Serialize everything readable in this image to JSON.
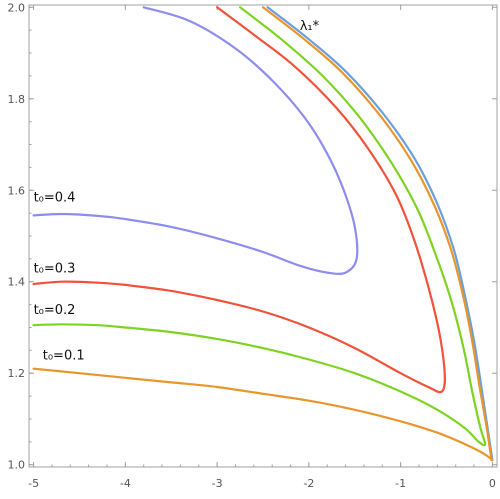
{
  "chart_data": {
    "type": "line",
    "title": "",
    "xlabel": "",
    "ylabel": "",
    "xlim": [
      -5.05,
      0.05
    ],
    "ylim": [
      0.995,
      2.005
    ],
    "grid": false,
    "x_ticks": [
      -5,
      -4,
      -3,
      -2,
      -1,
      0
    ],
    "x_tick_labels": [
      "-5",
      "-4",
      "-3",
      "-2",
      "-1",
      "0"
    ],
    "y_ticks": [
      1.0,
      1.2,
      1.4,
      1.6,
      1.8,
      2.0
    ],
    "y_tick_labels": [
      "1.0",
      "1.2",
      "1.4",
      "1.6",
      "1.8",
      "2.0"
    ],
    "series": [
      {
        "name": "λ₁*",
        "color": "#6b9fdc",
        "points": [
          [
            -2.45,
            2.0
          ],
          [
            -2.0,
            1.93
          ],
          [
            -1.6,
            1.86
          ],
          [
            -1.2,
            1.77
          ],
          [
            -0.85,
            1.67
          ],
          [
            -0.6,
            1.57
          ],
          [
            -0.42,
            1.47
          ],
          [
            -0.3,
            1.37
          ],
          [
            -0.2,
            1.27
          ],
          [
            -0.12,
            1.17
          ],
          [
            -0.06,
            1.09
          ],
          [
            0.0,
            1.01
          ]
        ]
      },
      {
        "name": "",
        "color": "#e8962c",
        "points": [
          [
            -2.5,
            2.0
          ],
          [
            -2.05,
            1.93
          ],
          [
            -1.65,
            1.86
          ],
          [
            -1.25,
            1.77
          ],
          [
            -0.9,
            1.67
          ],
          [
            -0.64,
            1.57
          ],
          [
            -0.45,
            1.47
          ],
          [
            -0.32,
            1.37
          ],
          [
            -0.22,
            1.27
          ],
          [
            -0.14,
            1.17
          ],
          [
            -0.07,
            1.09
          ],
          [
            -0.01,
            1.01
          ]
        ]
      },
      {
        "name": "t₀=0.1",
        "color": "#e8962c",
        "points": [
          [
            -5.0,
            1.21
          ],
          [
            -4.5,
            1.2
          ],
          [
            -4.0,
            1.19
          ],
          [
            -3.5,
            1.18
          ],
          [
            -3.0,
            1.17
          ],
          [
            -2.5,
            1.155
          ],
          [
            -2.0,
            1.14
          ],
          [
            -1.5,
            1.12
          ],
          [
            -1.0,
            1.095
          ],
          [
            -0.6,
            1.07
          ],
          [
            -0.3,
            1.045
          ],
          [
            -0.1,
            1.025
          ],
          [
            0.0,
            1.01
          ]
        ]
      },
      {
        "name": "t₀=0.2",
        "color": "#7ed321",
        "points": [
          [
            -5.0,
            1.305
          ],
          [
            -4.7,
            1.307
          ],
          [
            -4.3,
            1.305
          ],
          [
            -4.0,
            1.3
          ],
          [
            -3.5,
            1.29
          ],
          [
            -3.0,
            1.275
          ],
          [
            -2.5,
            1.255
          ],
          [
            -2.0,
            1.23
          ],
          [
            -1.5,
            1.2
          ],
          [
            -1.0,
            1.16
          ],
          [
            -0.6,
            1.12
          ],
          [
            -0.3,
            1.08
          ],
          [
            -0.15,
            1.05
          ],
          [
            -0.08,
            1.045
          ],
          [
            -0.13,
            1.08
          ],
          [
            -0.22,
            1.16
          ],
          [
            -0.32,
            1.26
          ],
          [
            -0.45,
            1.36
          ],
          [
            -0.62,
            1.46
          ],
          [
            -0.82,
            1.56
          ],
          [
            -1.1,
            1.66
          ],
          [
            -1.45,
            1.76
          ],
          [
            -1.85,
            1.85
          ],
          [
            -2.3,
            1.93
          ],
          [
            -2.75,
            2.0
          ]
        ]
      },
      {
        "name": "t₀=0.3",
        "color": "#f0523a",
        "points": [
          [
            -5.0,
            1.395
          ],
          [
            -4.7,
            1.4
          ],
          [
            -4.3,
            1.398
          ],
          [
            -4.0,
            1.393
          ],
          [
            -3.5,
            1.38
          ],
          [
            -3.0,
            1.36
          ],
          [
            -2.5,
            1.335
          ],
          [
            -2.0,
            1.3
          ],
          [
            -1.5,
            1.255
          ],
          [
            -1.0,
            1.2
          ],
          [
            -0.7,
            1.17
          ],
          [
            -0.55,
            1.16
          ],
          [
            -0.52,
            1.2
          ],
          [
            -0.58,
            1.29
          ],
          [
            -0.7,
            1.39
          ],
          [
            -0.85,
            1.49
          ],
          [
            -1.05,
            1.59
          ],
          [
            -1.35,
            1.69
          ],
          [
            -1.7,
            1.78
          ],
          [
            -2.15,
            1.87
          ],
          [
            -2.6,
            1.94
          ],
          [
            -3.0,
            2.0
          ]
        ]
      },
      {
        "name": "t₀=0.4",
        "color": "#8d8df0",
        "points": [
          [
            -5.0,
            1.545
          ],
          [
            -4.7,
            1.548
          ],
          [
            -4.3,
            1.544
          ],
          [
            -4.0,
            1.537
          ],
          [
            -3.5,
            1.52
          ],
          [
            -3.0,
            1.495
          ],
          [
            -2.5,
            1.465
          ],
          [
            -2.1,
            1.435
          ],
          [
            -1.8,
            1.42
          ],
          [
            -1.6,
            1.42
          ],
          [
            -1.48,
            1.45
          ],
          [
            -1.5,
            1.52
          ],
          [
            -1.62,
            1.6
          ],
          [
            -1.8,
            1.68
          ],
          [
            -2.05,
            1.76
          ],
          [
            -2.4,
            1.84
          ],
          [
            -2.8,
            1.91
          ],
          [
            -3.3,
            1.97
          ],
          [
            -3.8,
            2.0
          ]
        ]
      }
    ],
    "annotations": [
      {
        "text": "t₀=0.4",
        "x": -5.0,
        "y": 1.575
      },
      {
        "text": "t₀=0.3",
        "x": -5.0,
        "y": 1.42
      },
      {
        "text": "t₀=0.2",
        "x": -5.0,
        "y": 1.33
      },
      {
        "text": "t₀=0.1",
        "x": -4.9,
        "y": 1.23
      },
      {
        "text": "λ₁*",
        "x": -2.1,
        "y": 1.95
      }
    ]
  }
}
